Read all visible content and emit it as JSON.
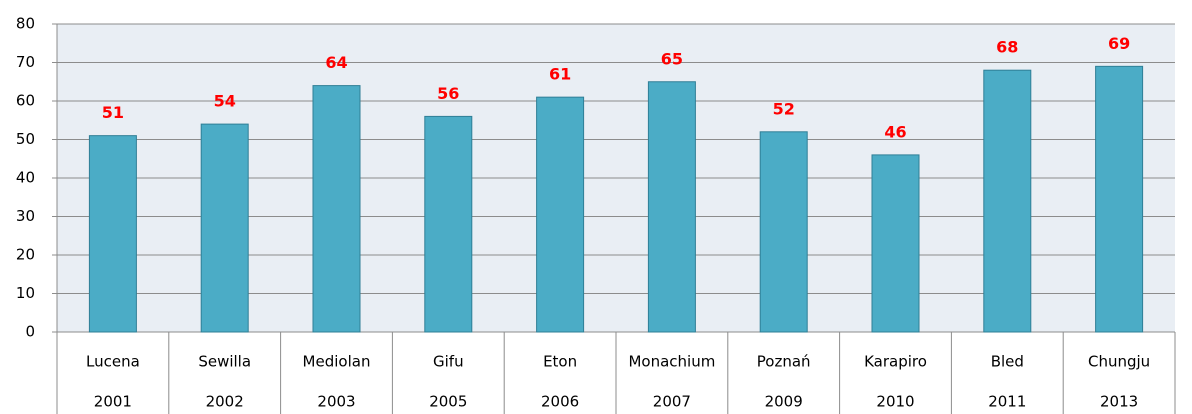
{
  "chart_data": {
    "type": "bar",
    "categories": [
      "Lucena",
      "Sewilla",
      "Mediolan",
      "Gifu",
      "Eton",
      "Monachium",
      "Poznań",
      "Karapiro",
      "Bled",
      "Chungju"
    ],
    "category_years": [
      "2001",
      "2002",
      "2003",
      "2005",
      "2006",
      "2007",
      "2009",
      "2010",
      "2011",
      "2013"
    ],
    "values": [
      51,
      54,
      64,
      56,
      61,
      65,
      52,
      46,
      68,
      69
    ],
    "color": "#4bacc6",
    "label_color": "#ff0000",
    "ylim": [
      0,
      80
    ],
    "yticks": [
      0,
      10,
      20,
      30,
      40,
      50,
      60,
      70,
      80
    ],
    "grid": true
  }
}
